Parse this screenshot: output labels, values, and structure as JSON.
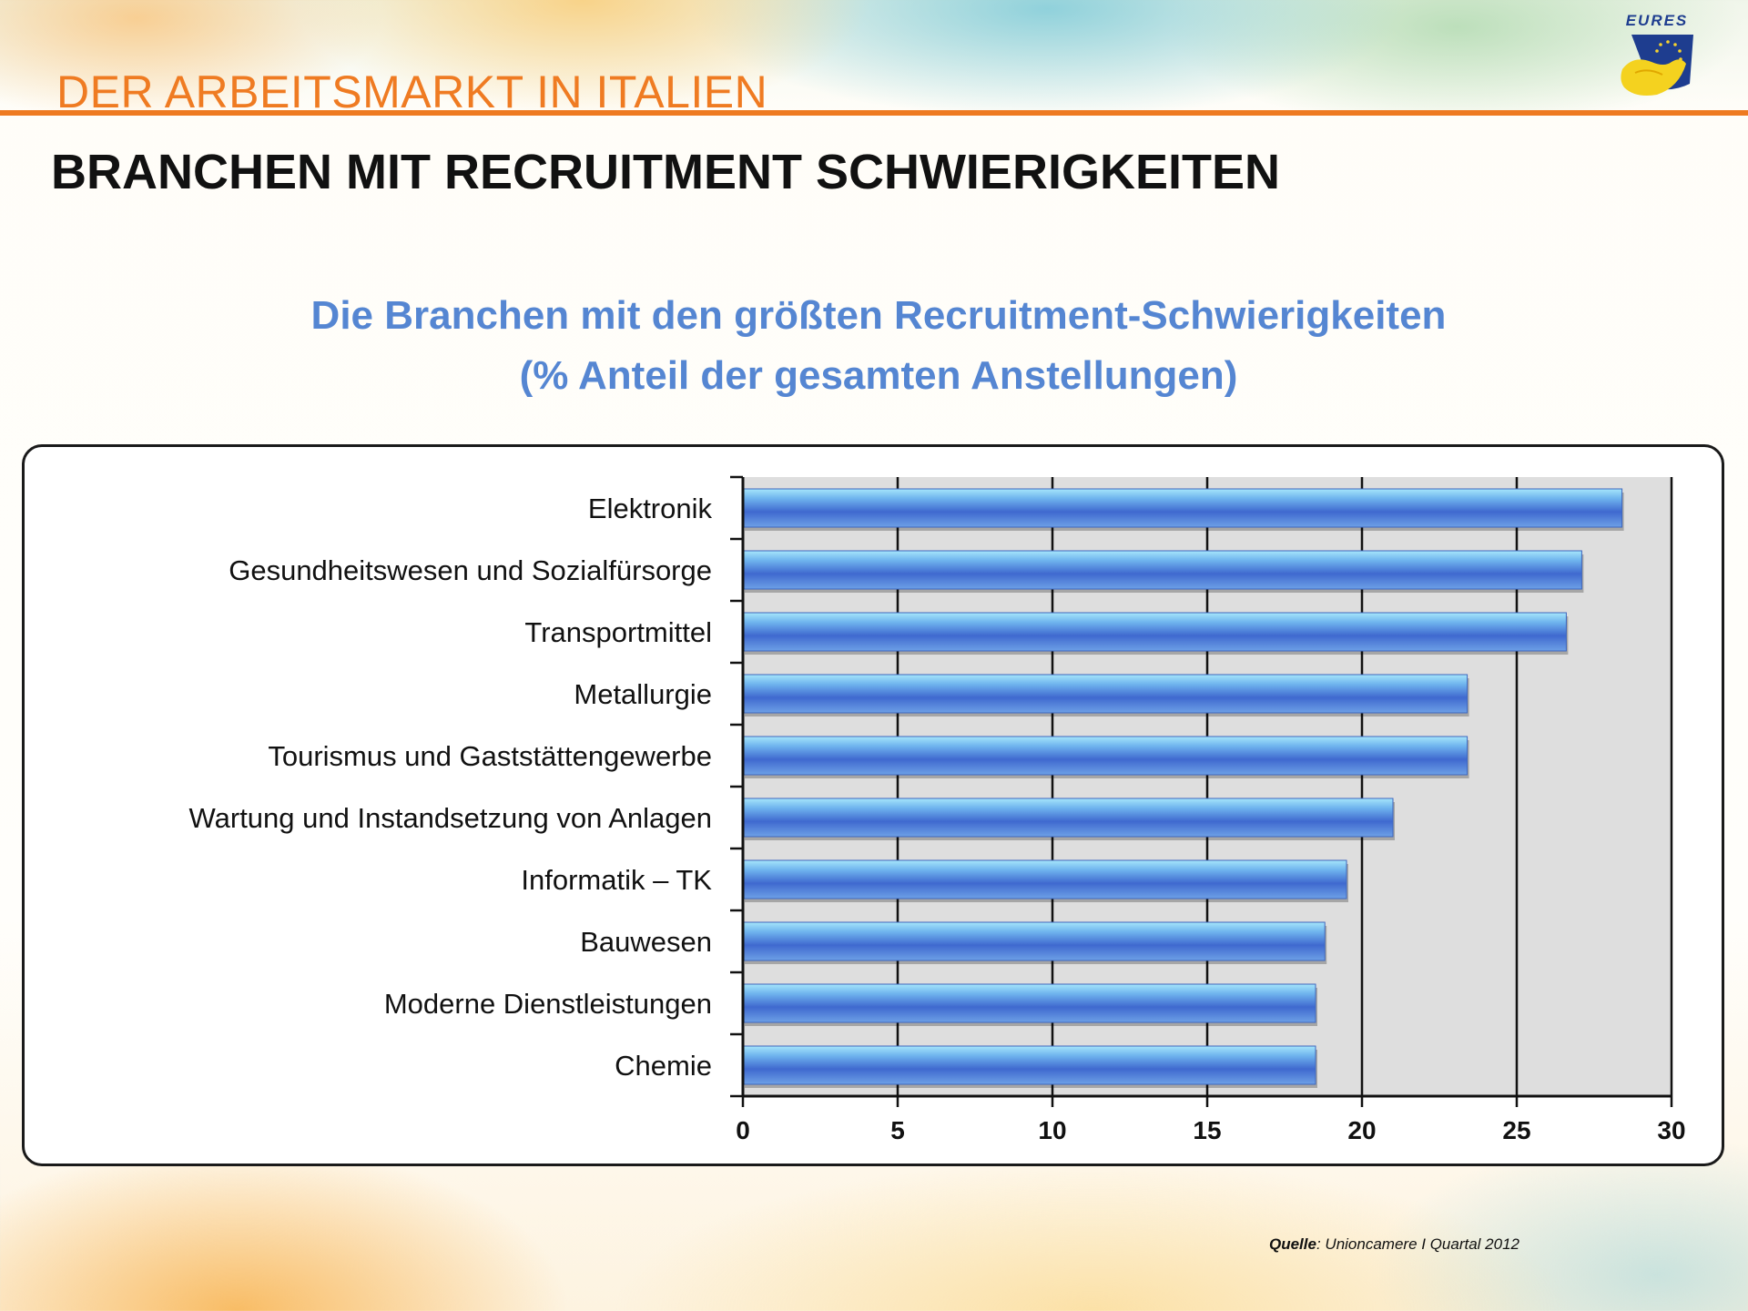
{
  "header": {
    "title": "DER ARBEITSMARKT IN ITALIEN",
    "logo_text": "EURES",
    "accent_color": "#ee7a21"
  },
  "page_title": "BRANCHEN MIT RECRUITMENT SCHWIERIGKEITEN",
  "chart_data": {
    "type": "bar",
    "orientation": "horizontal",
    "title_line1": "Die Branchen mit den größten Recruitment-Schwierigkeiten",
    "title_line2": "(% Anteil der gesamten Anstellungen)",
    "categories": [
      "Elektronik",
      "Gesundheitswesen und Sozialfürsorge",
      "Transportmittel",
      "Metallurgie",
      "Tourismus und Gaststättengewerbe",
      "Wartung und Instandsetzung von Anlagen",
      "Informatik – TK",
      "Bauwesen",
      "Moderne Dienstleistungen",
      "Chemie"
    ],
    "values": [
      28.4,
      27.1,
      26.6,
      23.4,
      23.4,
      21.0,
      19.5,
      18.8,
      18.5,
      18.5
    ],
    "x_ticks": [
      "0",
      "5",
      "10",
      "15",
      "20",
      "25",
      "30"
    ],
    "xlim": [
      0,
      30
    ],
    "grid": true,
    "bar_color": "#4f86d8",
    "xlabel": "",
    "ylabel": ""
  },
  "source": {
    "label": "Quelle",
    "text": ": Unioncamere I Quartal 2012"
  }
}
